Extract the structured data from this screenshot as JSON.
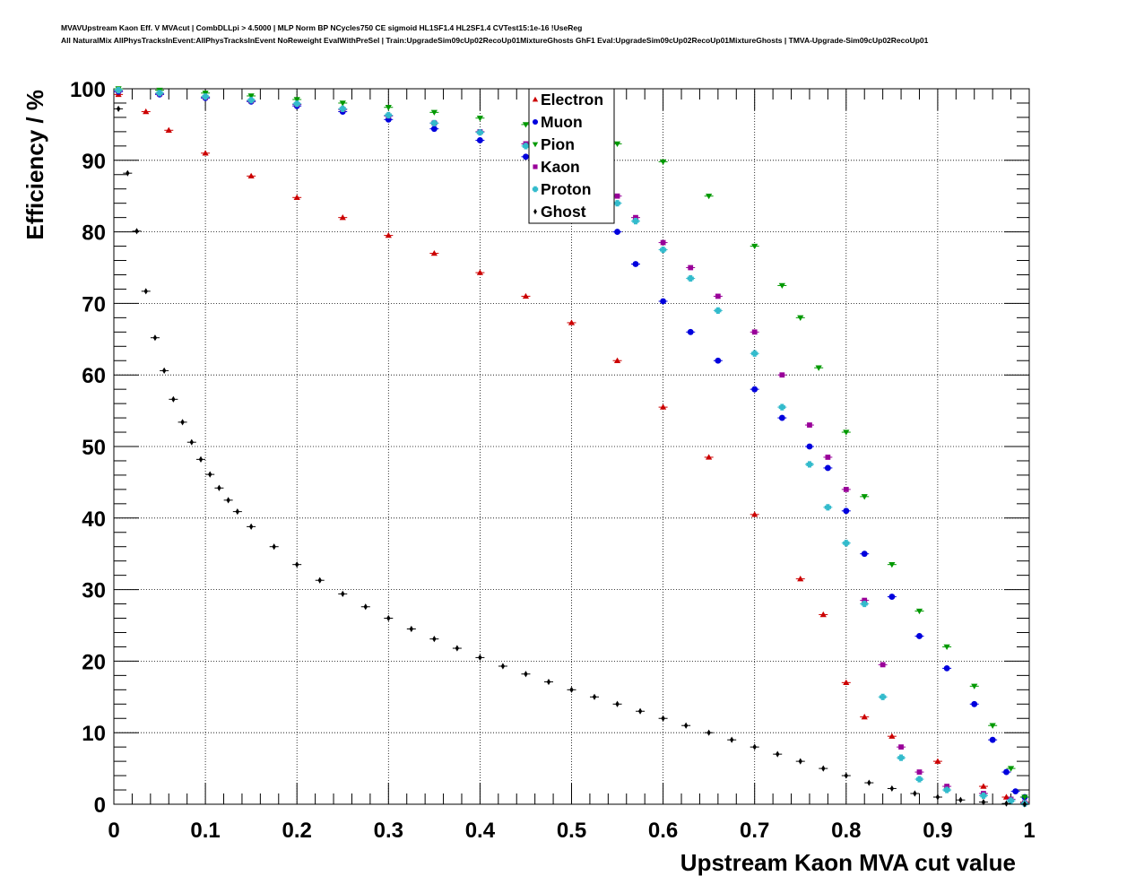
{
  "header": {
    "title_line1": "MVAVUpstream Kaon Eff. V MVAcut | CombDLLpi > 4.5000 | MLP Norm BP NCycles750 CE sigmoid HL1SF1.4 HL2SF1.4 CVTest15:1e-16 !UseReg",
    "title_line2": "All NaturalMix AllPhysTracksInEvent:AllPhysTracksInEvent NoReweight EvalWithPreSel | Train:UpgradeSim09cUp02RecoUp01MixtureGhosts GhF1 Eval:UpgradeSim09cUp02RecoUp01MixtureGhosts | TMVA-Upgrade-Sim09cUp02RecoUp01"
  },
  "chart_data": {
    "type": "scatter",
    "xlabel": "Upstream Kaon MVA cut value",
    "ylabel": "Efficiency / %",
    "xlim": [
      0,
      1
    ],
    "ylim": [
      0,
      100
    ],
    "x_ticks": [
      "0",
      "0.1",
      "0.2",
      "0.3",
      "0.4",
      "0.5",
      "0.6",
      "0.7",
      "0.8",
      "0.9",
      "1"
    ],
    "y_ticks": [
      "0",
      "10",
      "20",
      "30",
      "40",
      "50",
      "60",
      "70",
      "80",
      "90",
      "100"
    ],
    "grid": true,
    "legend_position": "top-center",
    "series": [
      {
        "name": "Electron",
        "marker": "triangle-up",
        "color": "#cc0000",
        "points": [
          [
            0.005,
            99.2
          ],
          [
            0.035,
            96.8
          ],
          [
            0.06,
            94.2
          ],
          [
            0.1,
            91.0
          ],
          [
            0.15,
            87.8
          ],
          [
            0.2,
            84.8
          ],
          [
            0.25,
            82.0
          ],
          [
            0.3,
            79.5
          ],
          [
            0.35,
            77.0
          ],
          [
            0.4,
            74.3
          ],
          [
            0.45,
            71.0
          ],
          [
            0.5,
            67.3
          ],
          [
            0.55,
            62.0
          ],
          [
            0.6,
            55.5
          ],
          [
            0.65,
            48.5
          ],
          [
            0.7,
            40.5
          ],
          [
            0.75,
            31.5
          ],
          [
            0.775,
            26.5
          ],
          [
            0.8,
            17.0
          ],
          [
            0.82,
            12.2
          ],
          [
            0.85,
            9.5
          ],
          [
            0.9,
            6.0
          ],
          [
            0.95,
            2.5
          ],
          [
            0.975,
            1.0
          ],
          [
            0.995,
            0.3
          ]
        ]
      },
      {
        "name": "Muon",
        "marker": "circle",
        "color": "#0000dd",
        "points": [
          [
            0.005,
            99.6
          ],
          [
            0.05,
            99.2
          ],
          [
            0.1,
            98.7
          ],
          [
            0.15,
            98.2
          ],
          [
            0.2,
            97.6
          ],
          [
            0.25,
            96.8
          ],
          [
            0.3,
            95.7
          ],
          [
            0.35,
            94.4
          ],
          [
            0.4,
            92.8
          ],
          [
            0.45,
            90.5
          ],
          [
            0.5,
            86.8
          ],
          [
            0.53,
            83.5
          ],
          [
            0.55,
            80.0
          ],
          [
            0.57,
            75.5
          ],
          [
            0.6,
            70.3
          ],
          [
            0.63,
            66.0
          ],
          [
            0.66,
            62.0
          ],
          [
            0.7,
            58.0
          ],
          [
            0.73,
            54.0
          ],
          [
            0.76,
            50.0
          ],
          [
            0.78,
            47.0
          ],
          [
            0.8,
            41.0
          ],
          [
            0.82,
            35.0
          ],
          [
            0.85,
            29.0
          ],
          [
            0.88,
            23.5
          ],
          [
            0.91,
            19.0
          ],
          [
            0.94,
            14.0
          ],
          [
            0.96,
            9.0
          ],
          [
            0.975,
            4.5
          ],
          [
            0.985,
            1.8
          ],
          [
            0.995,
            1.0
          ]
        ]
      },
      {
        "name": "Pion",
        "marker": "triangle-down",
        "color": "#009900",
        "points": [
          [
            0.005,
            100.0
          ],
          [
            0.05,
            99.8
          ],
          [
            0.1,
            99.4
          ],
          [
            0.15,
            99.0
          ],
          [
            0.2,
            98.5
          ],
          [
            0.25,
            98.0
          ],
          [
            0.3,
            97.4
          ],
          [
            0.35,
            96.7
          ],
          [
            0.4,
            95.9
          ],
          [
            0.45,
            95.0
          ],
          [
            0.5,
            93.8
          ],
          [
            0.55,
            92.3
          ],
          [
            0.6,
            89.8
          ],
          [
            0.65,
            85.0
          ],
          [
            0.7,
            78.0
          ],
          [
            0.73,
            72.5
          ],
          [
            0.75,
            68.0
          ],
          [
            0.77,
            61.0
          ],
          [
            0.8,
            52.0
          ],
          [
            0.82,
            43.0
          ],
          [
            0.85,
            33.5
          ],
          [
            0.88,
            27.0
          ],
          [
            0.91,
            22.0
          ],
          [
            0.94,
            16.5
          ],
          [
            0.96,
            11.0
          ],
          [
            0.98,
            5.0
          ],
          [
            0.995,
            1.0
          ]
        ]
      },
      {
        "name": "Kaon",
        "marker": "square",
        "color": "#990099",
        "points": [
          [
            0.005,
            99.7
          ],
          [
            0.05,
            99.3
          ],
          [
            0.1,
            98.8
          ],
          [
            0.15,
            98.3
          ],
          [
            0.2,
            97.8
          ],
          [
            0.25,
            97.1
          ],
          [
            0.3,
            96.2
          ],
          [
            0.35,
            95.2
          ],
          [
            0.4,
            94.0
          ],
          [
            0.45,
            92.3
          ],
          [
            0.5,
            90.0
          ],
          [
            0.53,
            87.0
          ],
          [
            0.55,
            85.0
          ],
          [
            0.57,
            82.0
          ],
          [
            0.6,
            78.5
          ],
          [
            0.63,
            75.0
          ],
          [
            0.66,
            71.0
          ],
          [
            0.7,
            66.0
          ],
          [
            0.73,
            60.0
          ],
          [
            0.76,
            53.0
          ],
          [
            0.78,
            48.5
          ],
          [
            0.8,
            44.0
          ],
          [
            0.82,
            28.5
          ],
          [
            0.84,
            19.5
          ],
          [
            0.86,
            8.0
          ],
          [
            0.88,
            4.5
          ],
          [
            0.91,
            2.5
          ],
          [
            0.95,
            1.5
          ],
          [
            0.98,
            0.7
          ],
          [
            0.995,
            0.2
          ]
        ]
      },
      {
        "name": "Proton",
        "marker": "cross",
        "color": "#33bbcc",
        "points": [
          [
            0.005,
            99.8
          ],
          [
            0.05,
            99.4
          ],
          [
            0.1,
            98.9
          ],
          [
            0.15,
            98.4
          ],
          [
            0.2,
            97.9
          ],
          [
            0.25,
            97.2
          ],
          [
            0.3,
            96.3
          ],
          [
            0.35,
            95.2
          ],
          [
            0.4,
            93.9
          ],
          [
            0.45,
            92.0
          ],
          [
            0.5,
            89.5
          ],
          [
            0.53,
            86.5
          ],
          [
            0.55,
            84.0
          ],
          [
            0.57,
            81.5
          ],
          [
            0.6,
            77.5
          ],
          [
            0.63,
            73.5
          ],
          [
            0.66,
            69.0
          ],
          [
            0.7,
            63.0
          ],
          [
            0.73,
            55.5
          ],
          [
            0.76,
            47.5
          ],
          [
            0.78,
            41.5
          ],
          [
            0.8,
            36.5
          ],
          [
            0.82,
            28.0
          ],
          [
            0.84,
            15.0
          ],
          [
            0.86,
            6.5
          ],
          [
            0.88,
            3.5
          ],
          [
            0.91,
            2.0
          ],
          [
            0.95,
            1.2
          ],
          [
            0.98,
            0.5
          ],
          [
            0.995,
            0.1
          ]
        ]
      },
      {
        "name": "Ghost",
        "marker": "diamond",
        "color": "#000000",
        "points": [
          [
            0.005,
            97.2
          ],
          [
            0.015,
            88.2
          ],
          [
            0.025,
            80.1
          ],
          [
            0.035,
            71.7
          ],
          [
            0.045,
            65.2
          ],
          [
            0.055,
            60.6
          ],
          [
            0.065,
            56.6
          ],
          [
            0.075,
            53.4
          ],
          [
            0.085,
            50.6
          ],
          [
            0.095,
            48.2
          ],
          [
            0.105,
            46.1
          ],
          [
            0.115,
            44.2
          ],
          [
            0.125,
            42.5
          ],
          [
            0.135,
            40.9
          ],
          [
            0.15,
            38.8
          ],
          [
            0.175,
            36.0
          ],
          [
            0.2,
            33.5
          ],
          [
            0.225,
            31.3
          ],
          [
            0.25,
            29.4
          ],
          [
            0.275,
            27.6
          ],
          [
            0.3,
            26.0
          ],
          [
            0.325,
            24.5
          ],
          [
            0.35,
            23.1
          ],
          [
            0.375,
            21.8
          ],
          [
            0.4,
            20.5
          ],
          [
            0.425,
            19.3
          ],
          [
            0.45,
            18.2
          ],
          [
            0.475,
            17.1
          ],
          [
            0.5,
            16.0
          ],
          [
            0.525,
            15.0
          ],
          [
            0.55,
            14.0
          ],
          [
            0.575,
            13.0
          ],
          [
            0.6,
            12.0
          ],
          [
            0.625,
            11.0
          ],
          [
            0.65,
            10.0
          ],
          [
            0.675,
            9.0
          ],
          [
            0.7,
            8.0
          ],
          [
            0.725,
            7.0
          ],
          [
            0.75,
            6.0
          ],
          [
            0.775,
            5.0
          ],
          [
            0.8,
            4.0
          ],
          [
            0.825,
            3.0
          ],
          [
            0.85,
            2.2
          ],
          [
            0.875,
            1.5
          ],
          [
            0.9,
            1.0
          ],
          [
            0.925,
            0.6
          ],
          [
            0.95,
            0.3
          ],
          [
            0.975,
            0.1
          ],
          [
            0.995,
            0.0
          ]
        ]
      }
    ]
  }
}
